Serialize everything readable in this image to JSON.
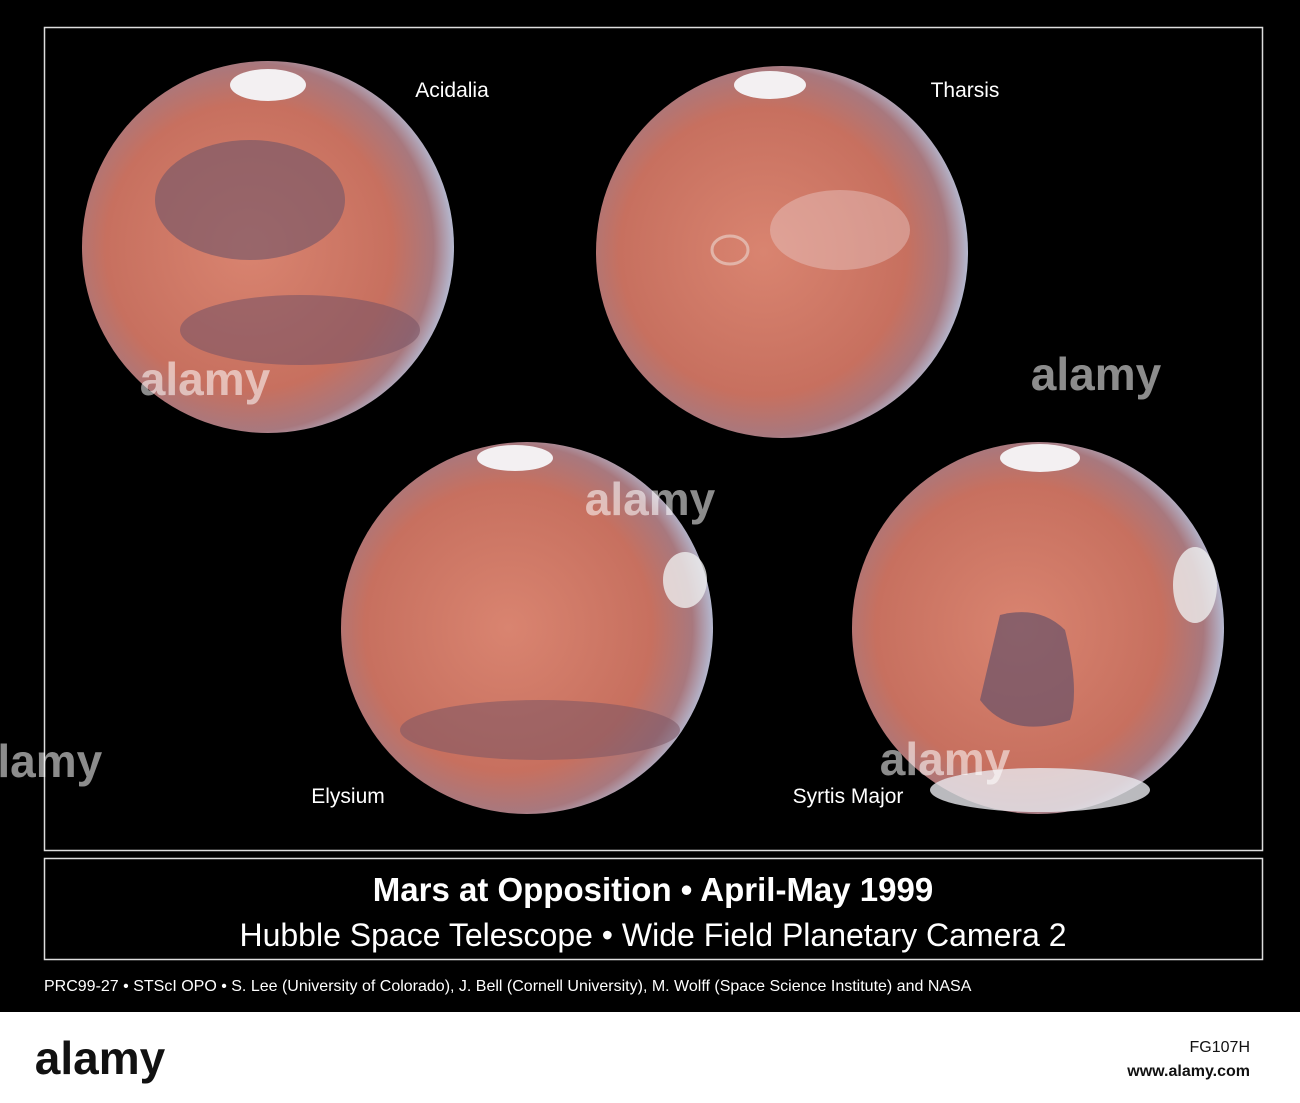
{
  "poster": {
    "labels": [
      "Acidalia",
      "Tharsis",
      "Elysium",
      "Syrtis Major"
    ],
    "title": "Mars at Opposition • April-May 1999",
    "subtitle": "Hubble Space Telescope • Wide Field Planetary Camera 2",
    "credit": "PRC99-27 • STScI OPO • S. Lee (University of Colorado), J. Bell (Cornell University), M. Wolff (Space Science Institute) and NASA"
  },
  "watermark": {
    "brand": "alamy",
    "image_id": "FG107H",
    "url": "www.alamy.com"
  }
}
